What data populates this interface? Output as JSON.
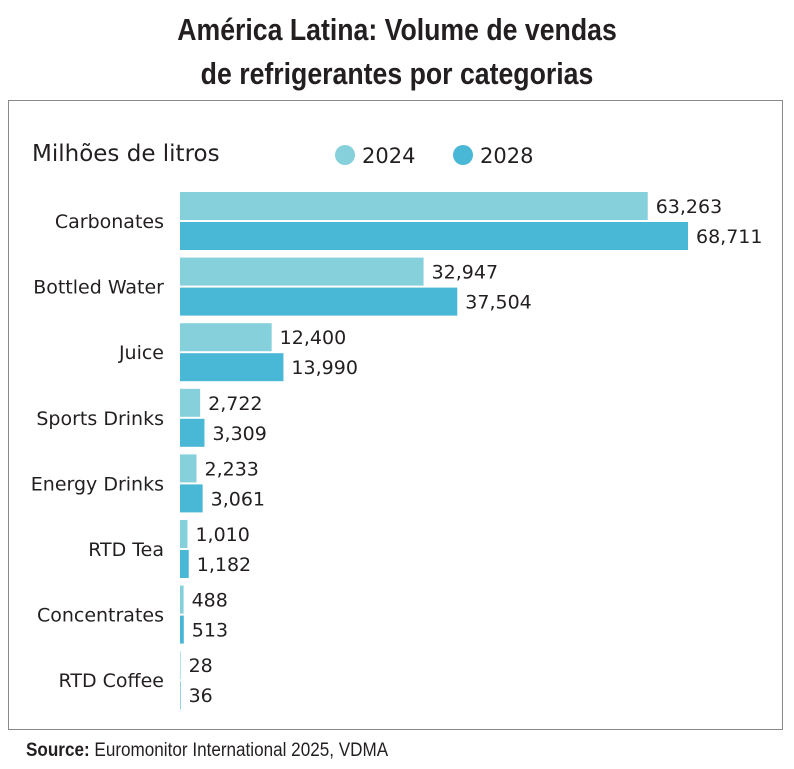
{
  "title_line1": "América Latina: Volume de vendas",
  "title_line2": "de refrigerantes por categorias",
  "source_label": "Source:",
  "source_text": " Euromonitor International 2025, VDMA",
  "chart_data": {
    "type": "bar",
    "orientation": "horizontal",
    "ylabel": "Milhões de litros",
    "legend_position": "top",
    "categories": [
      "Carbonates",
      "Bottled Water",
      "Juice",
      "Sports Drinks",
      "Energy Drinks",
      "RTD Tea",
      "Concentrates",
      "RTD Coffee"
    ],
    "series": [
      {
        "name": "2024",
        "color": "#86d0db",
        "values": [
          63263,
          32947,
          12400,
          2722,
          2233,
          1010,
          488,
          28
        ],
        "labels": [
          "63,263",
          "32,947",
          "12,400",
          "2,722",
          "2,233",
          "1,010",
          "488",
          "28"
        ]
      },
      {
        "name": "2028",
        "color": "#49b8d6",
        "values": [
          68711,
          37504,
          13990,
          3309,
          3061,
          1182,
          513,
          36
        ],
        "labels": [
          "68,711",
          "37,504",
          "13,990",
          "3,309",
          "3,061",
          "1,182",
          "513",
          "36"
        ]
      }
    ],
    "xlim": [
      0,
      68711
    ],
    "grid": false
  }
}
